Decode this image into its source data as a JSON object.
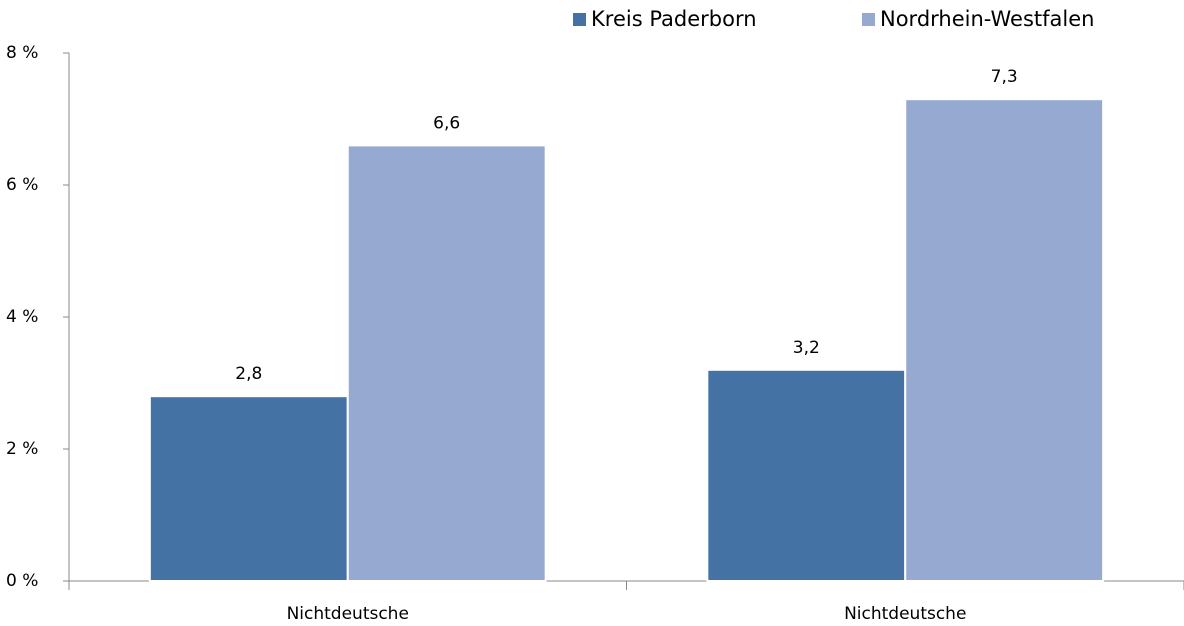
{
  "chart_data": {
    "type": "bar",
    "categories": [
      "Nichtdeutsche",
      "Nichtdeutsche"
    ],
    "series": [
      {
        "name": "Kreis Paderborn",
        "color": "#4472a4",
        "values": [
          2.8,
          3.2
        ],
        "value_labels": [
          "2,8",
          "3,2"
        ]
      },
      {
        "name": "Nordrhein-Westfalen",
        "color": "#95a9d1",
        "values": [
          6.6,
          7.3
        ],
        "value_labels": [
          "6,6",
          "7,3"
        ]
      }
    ],
    "ylim": [
      0,
      8
    ],
    "yticks": [
      {
        "value": 0,
        "label": "0 %"
      },
      {
        "value": 2,
        "label": "2 %"
      },
      {
        "value": 4,
        "label": "4 %"
      },
      {
        "value": 6,
        "label": "6 %"
      },
      {
        "value": 8,
        "label": "8 %"
      }
    ],
    "grid": false,
    "legend": "top-right"
  }
}
